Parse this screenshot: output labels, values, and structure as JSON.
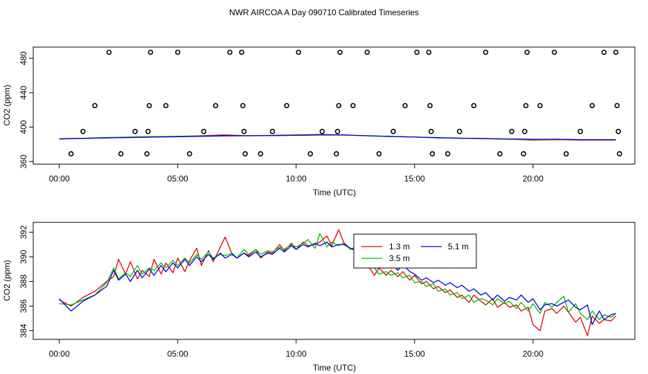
{
  "title": "NWR AIRCOA A  Day 090710  Calibrated Timeseries",
  "chart_data": [
    {
      "type": "line",
      "panel": "top",
      "xlabel": "Time (UTC)",
      "ylabel": "CO2 (ppm)",
      "xlim": [
        -1.1,
        24.3
      ],
      "ylim": [
        357,
        493
      ],
      "xticks": [
        0,
        5,
        10,
        15,
        20
      ],
      "xtick_labels": [
        "00:00",
        "05:00",
        "10:00",
        "15:00",
        "20:00"
      ],
      "yticks": [
        360,
        400,
        440,
        480
      ],
      "ytick_labels": [
        "360",
        "400",
        "440",
        "480"
      ],
      "series": [
        {
          "name": "1.3 m",
          "color": "#dd0000",
          "x": [
            0,
            2,
            4,
            6,
            7,
            8,
            10,
            11,
            12,
            13,
            14,
            15,
            16,
            17,
            18,
            19,
            20,
            21,
            22,
            23.5
          ],
          "values": [
            386.5,
            387.5,
            388.5,
            390,
            391,
            390,
            391,
            391.5,
            391,
            390,
            389,
            388.5,
            387.5,
            387,
            386.5,
            386,
            385,
            385.5,
            385,
            385
          ]
        },
        {
          "name": "3.5 m",
          "color": "#00bb00",
          "x": [
            0,
            2,
            4,
            6,
            7,
            8,
            10,
            11,
            12,
            13,
            14,
            15,
            16,
            17,
            18,
            19,
            20,
            21,
            22,
            23.5
          ],
          "values": [
            386.2,
            388,
            389,
            389.5,
            390,
            390,
            390.5,
            391,
            390.8,
            390,
            389,
            388.5,
            387.5,
            387,
            386.8,
            386,
            385.5,
            386,
            385.5,
            385.5
          ]
        },
        {
          "name": "5.1 m",
          "color": "#0000dd",
          "x": [
            0,
            2,
            4,
            6,
            7,
            8,
            10,
            11,
            12,
            13,
            14,
            15,
            16,
            17,
            18,
            19,
            20,
            21,
            22,
            23.5
          ],
          "values": [
            386.3,
            387.5,
            388.5,
            389.3,
            389.8,
            390,
            390.5,
            391,
            391,
            390,
            389.3,
            388.5,
            387.8,
            387.2,
            386.8,
            386.3,
            385.8,
            386,
            385.5,
            385.5
          ]
        }
      ],
      "flagged_points": [
        {
          "x": 0.5,
          "y": 369
        },
        {
          "x": 1.0,
          "y": 395
        },
        {
          "x": 1.5,
          "y": 425
        },
        {
          "x": 2.1,
          "y": 487
        },
        {
          "x": 2.6,
          "y": 369
        },
        {
          "x": 3.2,
          "y": 395
        },
        {
          "x": 3.7,
          "y": 369
        },
        {
          "x": 3.75,
          "y": 395
        },
        {
          "x": 3.8,
          "y": 425
        },
        {
          "x": 3.85,
          "y": 487
        },
        {
          "x": 4.5,
          "y": 425
        },
        {
          "x": 5.0,
          "y": 487
        },
        {
          "x": 5.5,
          "y": 369
        },
        {
          "x": 6.1,
          "y": 395
        },
        {
          "x": 6.6,
          "y": 425
        },
        {
          "x": 7.2,
          "y": 487
        },
        {
          "x": 7.7,
          "y": 487
        },
        {
          "x": 7.75,
          "y": 425
        },
        {
          "x": 7.8,
          "y": 395
        },
        {
          "x": 7.85,
          "y": 369
        },
        {
          "x": 8.5,
          "y": 369
        },
        {
          "x": 9.0,
          "y": 395
        },
        {
          "x": 9.6,
          "y": 425
        },
        {
          "x": 10.1,
          "y": 487
        },
        {
          "x": 10.6,
          "y": 369
        },
        {
          "x": 11.1,
          "y": 395
        },
        {
          "x": 11.7,
          "y": 369
        },
        {
          "x": 11.75,
          "y": 395
        },
        {
          "x": 11.8,
          "y": 425
        },
        {
          "x": 11.85,
          "y": 487
        },
        {
          "x": 12.4,
          "y": 425
        },
        {
          "x": 13.0,
          "y": 487
        },
        {
          "x": 13.5,
          "y": 369
        },
        {
          "x": 14.1,
          "y": 395
        },
        {
          "x": 14.6,
          "y": 425
        },
        {
          "x": 15.1,
          "y": 487
        },
        {
          "x": 15.6,
          "y": 487
        },
        {
          "x": 15.65,
          "y": 425
        },
        {
          "x": 15.7,
          "y": 395
        },
        {
          "x": 15.75,
          "y": 369
        },
        {
          "x": 16.4,
          "y": 369
        },
        {
          "x": 16.9,
          "y": 395
        },
        {
          "x": 17.5,
          "y": 425
        },
        {
          "x": 18.0,
          "y": 487
        },
        {
          "x": 18.6,
          "y": 369
        },
        {
          "x": 19.1,
          "y": 395
        },
        {
          "x": 19.6,
          "y": 369
        },
        {
          "x": 19.65,
          "y": 395
        },
        {
          "x": 19.7,
          "y": 425
        },
        {
          "x": 19.75,
          "y": 487
        },
        {
          "x": 20.3,
          "y": 425
        },
        {
          "x": 20.9,
          "y": 487
        },
        {
          "x": 21.4,
          "y": 369
        },
        {
          "x": 22.0,
          "y": 395
        },
        {
          "x": 22.5,
          "y": 425
        },
        {
          "x": 23.0,
          "y": 487
        },
        {
          "x": 23.5,
          "y": 487
        },
        {
          "x": 23.55,
          "y": 425
        },
        {
          "x": 23.6,
          "y": 395
        },
        {
          "x": 23.65,
          "y": 369
        }
      ]
    },
    {
      "type": "line",
      "panel": "bottom",
      "xlabel": "Time (UTC)",
      "ylabel": "CO2 (ppm)",
      "xlim": [
        -1.1,
        24.3
      ],
      "ylim": [
        383.3,
        392.8
      ],
      "xticks": [
        0,
        5,
        10,
        15,
        20
      ],
      "xtick_labels": [
        "00:00",
        "05:00",
        "10:00",
        "15:00",
        "20:00"
      ],
      "yticks": [
        384,
        386,
        388,
        390,
        392
      ],
      "ytick_labels": [
        "384",
        "386",
        "388",
        "390",
        "392"
      ],
      "legend_position": "top-right",
      "series": [
        {
          "name": "1.3 m",
          "color": "#dd0000",
          "x": [
            0,
            0.5,
            1,
            1.5,
            2,
            2.3,
            2.5,
            2.8,
            3,
            3.3,
            3.5,
            3.8,
            4,
            4.3,
            4.5,
            4.8,
            5,
            5.3,
            5.5,
            5.8,
            6,
            6.3,
            6.5,
            6.8,
            7,
            7.3,
            7.5,
            7.8,
            8,
            8.3,
            8.5,
            8.8,
            9,
            9.3,
            9.5,
            9.8,
            10,
            10.3,
            10.5,
            10.8,
            11,
            11.3,
            11.5,
            11.8,
            12,
            12.3,
            12.5,
            12.8,
            13,
            13.3,
            13.5,
            13.8,
            14,
            14.3,
            14.5,
            14.8,
            15,
            15.3,
            15.5,
            15.8,
            16,
            16.3,
            16.5,
            16.8,
            17,
            17.3,
            17.5,
            17.8,
            18,
            18.3,
            18.5,
            18.8,
            19,
            19.3,
            19.5,
            19.8,
            20,
            20.3,
            20.5,
            20.8,
            21,
            21.3,
            21.5,
            21.8,
            22,
            22.3,
            22.5,
            22.8,
            23,
            23.3,
            23.5
          ],
          "values": [
            386.5,
            386,
            386.7,
            387.2,
            388,
            388.4,
            389.8,
            388.6,
            389.6,
            388.2,
            388.9,
            388.4,
            389.8,
            388.6,
            389.5,
            388.7,
            389.9,
            388.8,
            389.7,
            390.7,
            389.3,
            390.5,
            389.6,
            390.8,
            391.6,
            390.2,
            389.9,
            390.3,
            390.1,
            390.6,
            389.9,
            390.4,
            390.3,
            391,
            390.5,
            391.1,
            390.6,
            391.2,
            390.9,
            391,
            391.2,
            391.7,
            390.9,
            392.2,
            391.2,
            390.6,
            390.8,
            389.8,
            389.4,
            388.5,
            389.1,
            388.5,
            388.9,
            388.4,
            388.8,
            388.1,
            388.5,
            387.8,
            388,
            387.4,
            387.6,
            387.1,
            387.3,
            386.7,
            386.9,
            386.3,
            386.9,
            386.4,
            386.1,
            386.6,
            385.9,
            386.3,
            385.9,
            386.1,
            385.6,
            385.9,
            384.5,
            384,
            385.6,
            385.8,
            385.4,
            386,
            385.5,
            384.7,
            385.1,
            383.6,
            385.2,
            384.6,
            384.9,
            384.8,
            385.2
          ]
        },
        {
          "name": "3.5 m",
          "color": "#00bb00",
          "x": [
            0,
            0.5,
            1,
            1.5,
            2,
            2.3,
            2.5,
            2.8,
            3,
            3.3,
            3.5,
            3.8,
            4,
            4.3,
            4.5,
            4.8,
            5,
            5.3,
            5.5,
            5.8,
            6,
            6.3,
            6.5,
            6.8,
            7,
            7.3,
            7.5,
            7.8,
            8,
            8.3,
            8.5,
            8.8,
            9,
            9.3,
            9.5,
            9.8,
            10,
            10.3,
            10.5,
            10.8,
            11,
            11.3,
            11.5,
            11.8,
            12,
            12.3,
            12.5,
            12.8,
            13,
            13.3,
            13.5,
            13.8,
            14,
            14.3,
            14.5,
            14.8,
            15,
            15.3,
            15.5,
            15.8,
            16,
            16.3,
            16.5,
            16.8,
            17,
            17.3,
            17.5,
            17.8,
            18,
            18.3,
            18.5,
            18.8,
            19,
            19.3,
            19.5,
            19.8,
            20,
            20.3,
            20.5,
            20.8,
            21,
            21.3,
            21.5,
            21.8,
            22,
            22.3,
            22.5,
            22.8,
            23,
            23.3,
            23.5
          ],
          "values": [
            386.2,
            386.1,
            386.5,
            386.9,
            387.9,
            389.1,
            388.2,
            388.7,
            388.4,
            389.3,
            388.6,
            389.1,
            388.9,
            389.5,
            389.1,
            389.7,
            389.3,
            389.9,
            389.5,
            390.2,
            389.8,
            390.4,
            389.9,
            390.2,
            390.1,
            390.3,
            389.9,
            390.6,
            390.2,
            390.6,
            390.2,
            390.5,
            390.4,
            390.8,
            390.6,
            391,
            390.8,
            391.1,
            391.4,
            390.7,
            391.9,
            390.8,
            391.2,
            390.9,
            391.1,
            390.6,
            390.7,
            390.2,
            389.8,
            389.1,
            388.6,
            388.8,
            388.5,
            388.7,
            388.3,
            388.5,
            387.9,
            388,
            387.6,
            387.8,
            387.2,
            387.4,
            386.9,
            387.1,
            386.6,
            386.9,
            386.3,
            386.6,
            386.5,
            386.1,
            386.6,
            386.2,
            386.4,
            385.8,
            386.3,
            385.6,
            386.2,
            385.4,
            386.3,
            385.9,
            386.3,
            386.8,
            385.5,
            386.2,
            385.4,
            384.9,
            385.6,
            384.9,
            385.3,
            385.1,
            385.4
          ]
        },
        {
          "name": "5.1 m",
          "color": "#0000dd",
          "x": [
            0,
            0.5,
            1,
            1.5,
            2,
            2.3,
            2.5,
            2.8,
            3,
            3.3,
            3.5,
            3.8,
            4,
            4.3,
            4.5,
            4.8,
            5,
            5.3,
            5.5,
            5.8,
            6,
            6.3,
            6.5,
            6.8,
            7,
            7.3,
            7.5,
            7.8,
            8,
            8.3,
            8.5,
            8.8,
            9,
            9.3,
            9.5,
            9.8,
            10,
            10.3,
            10.5,
            10.8,
            11,
            11.3,
            11.5,
            11.8,
            12,
            12.3,
            12.5,
            12.8,
            13,
            13.3,
            13.5,
            13.8,
            14,
            14.3,
            14.5,
            14.8,
            15,
            15.3,
            15.5,
            15.8,
            16,
            16.3,
            16.5,
            16.8,
            17,
            17.3,
            17.5,
            17.8,
            18,
            18.3,
            18.5,
            18.8,
            19,
            19.3,
            19.5,
            19.8,
            20,
            20.3,
            20.5,
            20.8,
            21,
            21.3,
            21.5,
            21.8,
            22,
            22.3,
            22.5,
            22.8,
            23,
            23.3,
            23.5
          ],
          "values": [
            386.6,
            385.6,
            386.4,
            386.9,
            387.6,
            388.9,
            388.1,
            388.6,
            388,
            388.9,
            388.3,
            389,
            388.5,
            389.3,
            388.8,
            389.5,
            389.1,
            389.8,
            389.3,
            390,
            389.6,
            390.2,
            389.8,
            390.3,
            389.9,
            390.2,
            389.9,
            390.3,
            390,
            390.4,
            390,
            390.3,
            390.2,
            390.7,
            390.4,
            390.9,
            390.6,
            391,
            390.8,
            391.1,
            390.9,
            391.2,
            390.8,
            391,
            391,
            390.7,
            390.5,
            390.2,
            389.6,
            389.4,
            389.8,
            389.2,
            389.5,
            388.9,
            389.4,
            388.8,
            388.6,
            388.1,
            388.3,
            387.9,
            388.1,
            387.7,
            387.9,
            387.5,
            387.7,
            387.2,
            387.4,
            386.9,
            387.1,
            386.5,
            386.9,
            386.4,
            386.7,
            386.5,
            386.9,
            386.3,
            386.6,
            385.7,
            386.1,
            386.2,
            386,
            386.3,
            386.5,
            385.9,
            385.7,
            386.1,
            384.5,
            385.6,
            384.9,
            385.3,
            385.4
          ]
        }
      ]
    }
  ]
}
